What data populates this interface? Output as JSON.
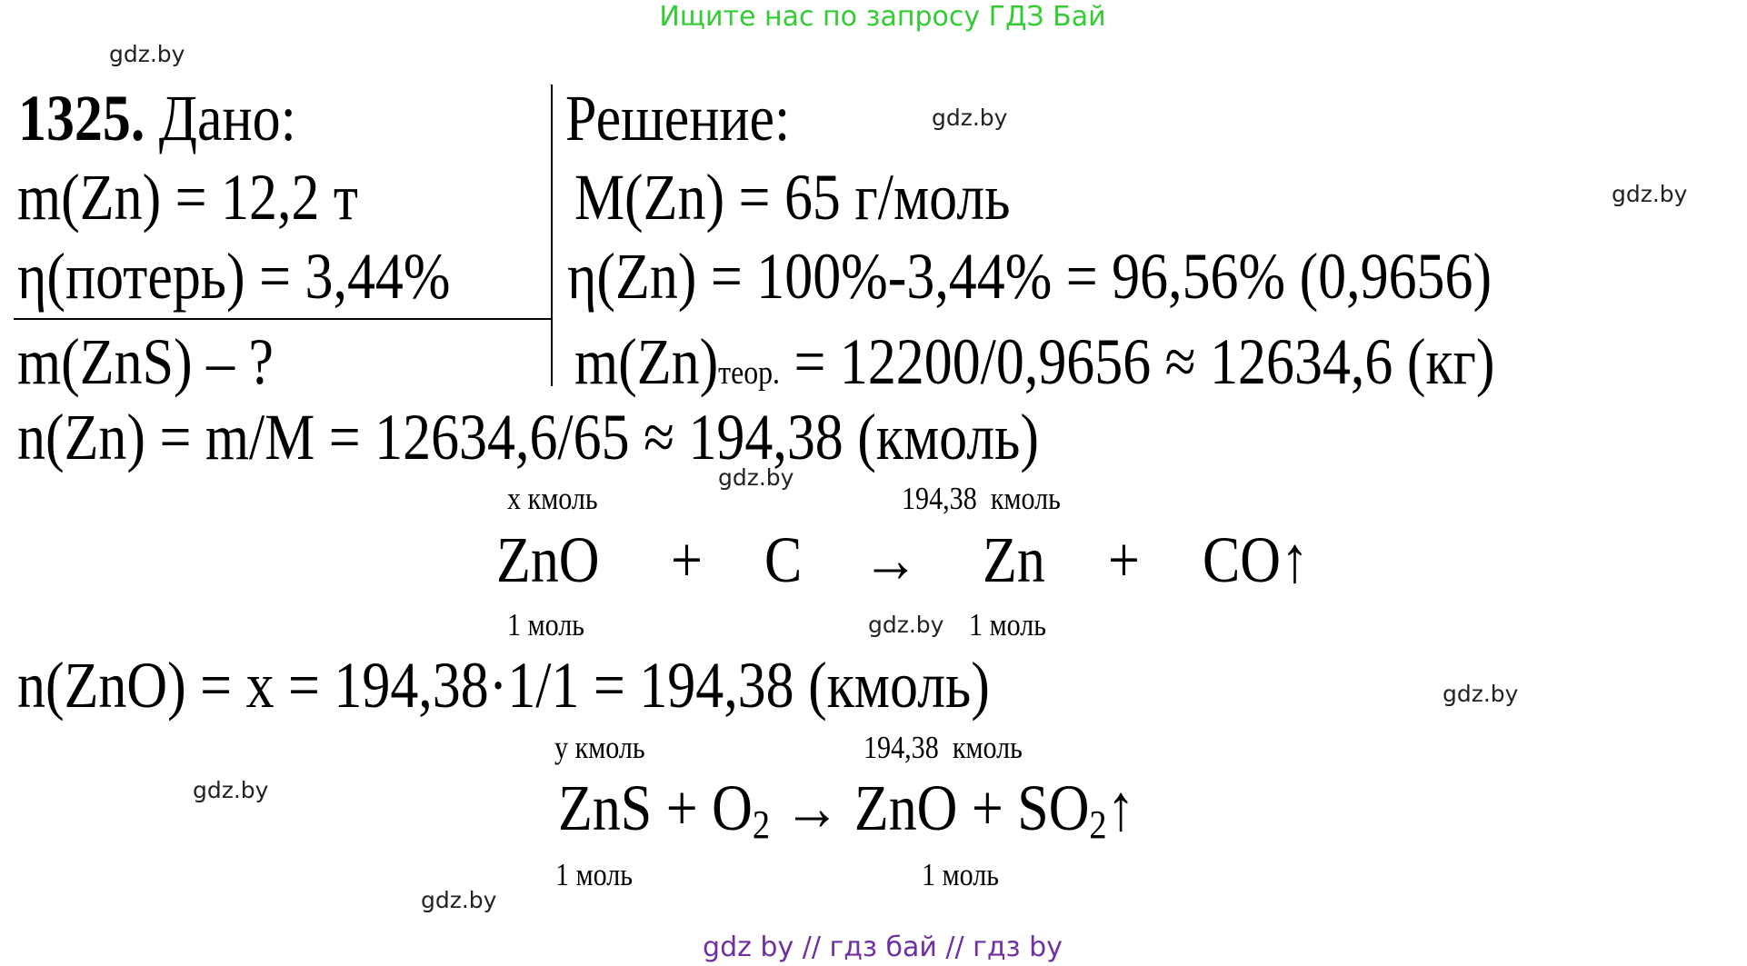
{
  "header": {
    "text": "Ищите нас по запросу ГДЗ Бай",
    "color": "#33cc33"
  },
  "footer": {
    "text": "gdz by  //  гдз бай  //  гдз by",
    "color": "#7030a0"
  },
  "watermark": "gdz.by",
  "problem": {
    "number": "1325.",
    "given_title": "Дано:",
    "solution_title": "Решение:",
    "given": [
      "m(Zn) = 12,2 т",
      "η(потерь) = 3,44%"
    ],
    "find": "m(ZnS) – ?",
    "solution": {
      "molar_mass": "M(Zn) = 65 г/моль",
      "yield": "η(Zn) = 100%-3,44% = 96,56% (0,9656)",
      "theor_prefix": "m(Zn)",
      "theor_sub": "теор.",
      "theor_rest": " = 12200/0,9656 ≈ 12634,6 (кг)",
      "moles_zn": "n(Zn) = m/M = 12634,6/65 ≈ 194,38 (кмоль)",
      "moles_zno": "n(ZnO) = x = 194,38·1/1 = 194,38 (кмоль)"
    },
    "reaction1": {
      "above_left": "x кмоль",
      "above_right": "194,38  кмоль",
      "terms": [
        "ZnO",
        "+",
        "C",
        "→",
        "Zn",
        "+",
        "CO↑"
      ],
      "below_left": "1 моль",
      "below_right": "1 моль"
    },
    "reaction2": {
      "above_left": "y кмоль",
      "above_right": "194,38  кмоль",
      "part1": "ZnS + O",
      "sub1": "2",
      "part2": " → ZnO + SO",
      "sub2": "2",
      "part3": "↑",
      "below_left": "1 моль",
      "below_right": "1 моль"
    }
  }
}
